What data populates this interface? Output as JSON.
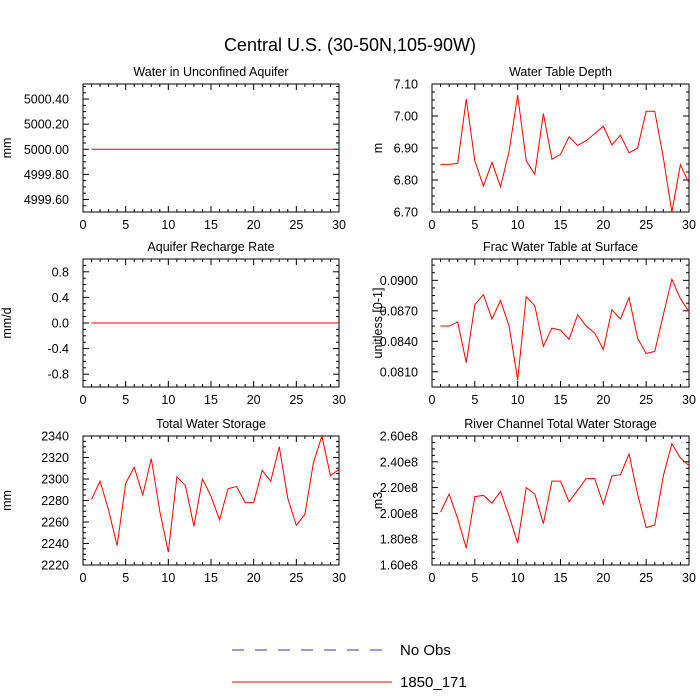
{
  "figure": {
    "title": "Central U.S. (30-50N,105-90W)"
  },
  "colors": {
    "series": "#ff0000",
    "no_obs": "#3a3ab0"
  },
  "legend": [
    {
      "label": "No Obs",
      "style": "dashed",
      "color": "#3a3ab0"
    },
    {
      "label": "1850_171",
      "style": "solid",
      "color": "#ff0000"
    }
  ],
  "chart_data": [
    {
      "type": "line",
      "title": "Water in Unconfined Aquifer",
      "ylabel": "mm",
      "xlim": [
        0,
        30
      ],
      "ylim": [
        4999.5,
        5000.52
      ],
      "xticks": [
        0,
        5,
        10,
        15,
        20,
        25,
        30
      ],
      "xtick_labels": [
        "0",
        "5",
        "10",
        "15",
        "20",
        "25",
        "30"
      ],
      "yticks": [
        4999.6,
        4999.8,
        5000.0,
        5000.2,
        5000.4
      ],
      "ytick_labels": [
        "4999.60",
        "4999.80",
        "5000.00",
        "5000.20",
        "5000.40"
      ],
      "x": [
        1,
        2,
        3,
        4,
        5,
        6,
        7,
        8,
        9,
        10,
        11,
        12,
        13,
        14,
        15,
        16,
        17,
        18,
        19,
        20,
        21,
        22,
        23,
        24,
        25,
        26,
        27,
        28,
        29,
        30
      ],
      "series": [
        {
          "name": "1850_171",
          "color": "#ff0000",
          "values": [
            5000,
            5000,
            5000,
            5000,
            5000,
            5000,
            5000,
            5000,
            5000,
            5000,
            5000,
            5000,
            5000,
            5000,
            5000,
            5000,
            5000,
            5000,
            5000,
            5000,
            5000,
            5000,
            5000,
            5000,
            5000,
            5000,
            5000,
            5000,
            5000,
            5000
          ]
        }
      ]
    },
    {
      "type": "line",
      "title": "Water Table Depth",
      "ylabel": "m",
      "xlim": [
        0,
        30
      ],
      "ylim": [
        6.7,
        7.1
      ],
      "xticks": [
        0,
        5,
        10,
        15,
        20,
        25,
        30
      ],
      "xtick_labels": [
        "0",
        "5",
        "10",
        "15",
        "20",
        "25",
        "30"
      ],
      "yticks": [
        6.7,
        6.8,
        6.9,
        7.0,
        7.1
      ],
      "ytick_labels": [
        "6.70",
        "6.80",
        "6.90",
        "7.00",
        "7.10"
      ],
      "x": [
        1,
        2,
        3,
        4,
        5,
        6,
        7,
        8,
        9,
        10,
        11,
        12,
        13,
        14,
        15,
        16,
        17,
        18,
        19,
        20,
        21,
        22,
        23,
        24,
        25,
        26,
        27,
        28,
        29,
        30
      ],
      "series": [
        {
          "name": "1850_171",
          "color": "#ff0000",
          "values": [
            6.849,
            6.849,
            6.852,
            7.053,
            6.86,
            6.781,
            6.855,
            6.779,
            6.89,
            7.065,
            6.86,
            6.818,
            7.008,
            6.865,
            6.88,
            6.935,
            6.908,
            6.923,
            6.945,
            6.968,
            6.91,
            6.94,
            6.885,
            6.9,
            7.015,
            7.015,
            6.87,
            6.7,
            6.848,
            6.79
          ]
        }
      ]
    },
    {
      "type": "line",
      "title": "Aquifer Recharge Rate",
      "ylabel": "mm/d",
      "xlim": [
        0,
        30
      ],
      "ylim": [
        -1.0,
        1.0
      ],
      "xticks": [
        0,
        5,
        10,
        15,
        20,
        25,
        30
      ],
      "xtick_labels": [
        "0",
        "5",
        "10",
        "15",
        "20",
        "25",
        "30"
      ],
      "yticks": [
        -0.8,
        -0.4,
        0.0,
        0.4,
        0.8
      ],
      "ytick_labels": [
        "-0.8",
        "-0.4",
        "0.0",
        "0.4",
        "0.8"
      ],
      "x": [
        1,
        2,
        3,
        4,
        5,
        6,
        7,
        8,
        9,
        10,
        11,
        12,
        13,
        14,
        15,
        16,
        17,
        18,
        19,
        20,
        21,
        22,
        23,
        24,
        25,
        26,
        27,
        28,
        29,
        30
      ],
      "series": [
        {
          "name": "1850_171",
          "color": "#ff0000",
          "values": [
            0,
            0,
            0,
            0,
            0,
            0,
            0,
            0,
            0,
            0,
            0,
            0,
            0,
            0,
            0,
            0,
            0,
            0,
            0,
            0,
            0,
            0,
            0,
            0,
            0,
            0,
            0,
            0,
            0,
            0
          ]
        }
      ]
    },
    {
      "type": "line",
      "title": "Frac Water Table at Surface",
      "ylabel": "unitless [0-1]",
      "xlim": [
        0,
        30
      ],
      "ylim": [
        0.0795,
        0.0921
      ],
      "xticks": [
        0,
        5,
        10,
        15,
        20,
        25,
        30
      ],
      "xtick_labels": [
        "0",
        "5",
        "10",
        "15",
        "20",
        "25",
        "30"
      ],
      "yticks": [
        0.081,
        0.084,
        0.087,
        0.09
      ],
      "ytick_labels": [
        "0.0810",
        "0.0840",
        "0.0870",
        "0.0900"
      ],
      "x": [
        1,
        2,
        3,
        4,
        5,
        6,
        7,
        8,
        9,
        10,
        11,
        12,
        13,
        14,
        15,
        16,
        17,
        18,
        19,
        20,
        21,
        22,
        23,
        24,
        25,
        26,
        27,
        28,
        29,
        30
      ],
      "series": [
        {
          "name": "1850_171",
          "color": "#ff0000",
          "values": [
            0.0855,
            0.0855,
            0.0859,
            0.0819,
            0.0876,
            0.0886,
            0.0862,
            0.088,
            0.0855,
            0.0802,
            0.0884,
            0.0875,
            0.0835,
            0.0853,
            0.0851,
            0.0842,
            0.0866,
            0.0855,
            0.0848,
            0.0832,
            0.0871,
            0.0862,
            0.0883,
            0.0843,
            0.0828,
            0.083,
            0.0866,
            0.0901,
            0.0882,
            0.0869
          ]
        }
      ]
    },
    {
      "type": "line",
      "title": "Total Water Storage",
      "ylabel": "mm",
      "xlim": [
        0,
        30
      ],
      "ylim": [
        2220,
        2340
      ],
      "xticks": [
        0,
        5,
        10,
        15,
        20,
        25,
        30
      ],
      "xtick_labels": [
        "0",
        "5",
        "10",
        "15",
        "20",
        "25",
        "30"
      ],
      "yticks": [
        2220,
        2240,
        2260,
        2280,
        2300,
        2320,
        2340
      ],
      "ytick_labels": [
        "2220",
        "2240",
        "2260",
        "2280",
        "2300",
        "2320",
        "2340"
      ],
      "x": [
        1,
        2,
        3,
        4,
        5,
        6,
        7,
        8,
        9,
        10,
        11,
        12,
        13,
        14,
        15,
        16,
        17,
        18,
        19,
        20,
        21,
        22,
        23,
        24,
        25,
        26,
        27,
        28,
        29,
        30
      ],
      "series": [
        {
          "name": "1850_171",
          "color": "#ff0000",
          "values": [
            2281,
            2298,
            2271,
            2238,
            2296,
            2311,
            2285,
            2319,
            2270,
            2232,
            2302,
            2294,
            2256,
            2300,
            2284,
            2262,
            2291,
            2293,
            2278,
            2278,
            2308,
            2298,
            2330,
            2282,
            2257,
            2267,
            2315,
            2340,
            2303,
            2309
          ]
        }
      ]
    },
    {
      "type": "line",
      "title": "River Channel Total Water Storage",
      "ylabel": "m3",
      "xlim": [
        0,
        30
      ],
      "ylim": [
        160000000.0,
        260000000.0
      ],
      "xticks": [
        0,
        5,
        10,
        15,
        20,
        25,
        30
      ],
      "xtick_labels": [
        "0",
        "5",
        "10",
        "15",
        "20",
        "25",
        "30"
      ],
      "yticks": [
        160000000.0,
        180000000.0,
        200000000.0,
        220000000.0,
        240000000.0,
        260000000.0
      ],
      "ytick_labels": [
        "1.60e8",
        "1.80e8",
        "2.00e8",
        "2.20e8",
        "2.40e8",
        "2.60e8"
      ],
      "x": [
        1,
        2,
        3,
        4,
        5,
        6,
        7,
        8,
        9,
        10,
        11,
        12,
        13,
        14,
        15,
        16,
        17,
        18,
        19,
        20,
        21,
        22,
        23,
        24,
        25,
        26,
        27,
        28,
        29,
        30
      ],
      "series": [
        {
          "name": "1850_171",
          "color": "#ff0000",
          "values": [
            201000000.0,
            215000000.0,
            196000000.0,
            173000000.0,
            213000000.0,
            214000000.0,
            208000000.0,
            217000000.0,
            198000000.0,
            177000000.0,
            220000000.0,
            215000000.0,
            192000000.0,
            225000000.0,
            225000000.0,
            209000000.0,
            218000000.0,
            227000000.0,
            227000000.0,
            207000000.0,
            229000000.0,
            230000000.0,
            246000000.0,
            215000000.0,
            189000000.0,
            191000000.0,
            229000000.0,
            254000000.0,
            243000000.0,
            237000000.0
          ]
        }
      ]
    }
  ]
}
